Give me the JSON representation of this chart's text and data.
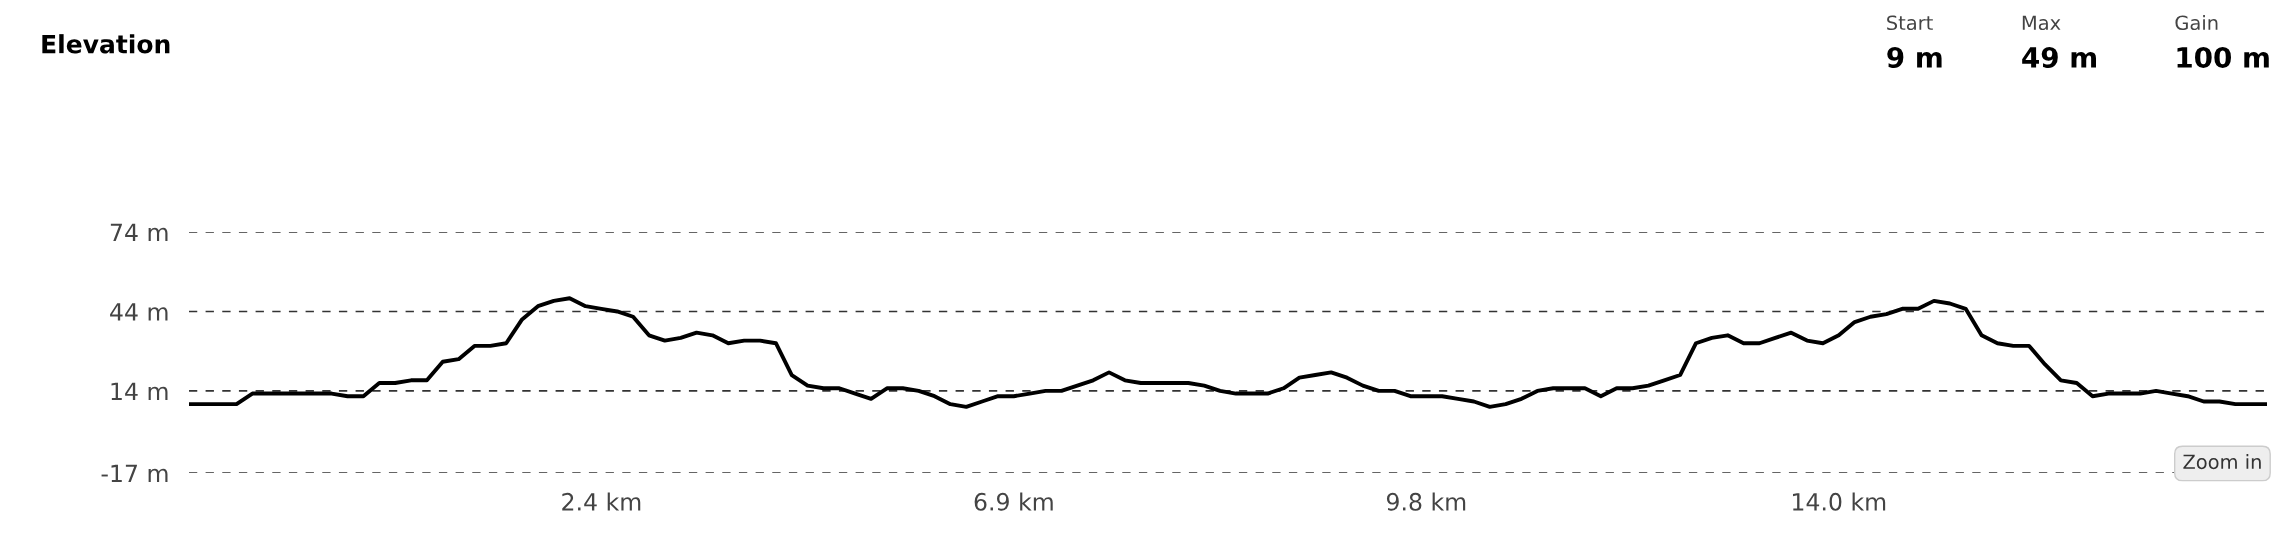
{
  "chart_data": {
    "type": "line",
    "title": "Elevation",
    "categories": [
      null,
      null,
      null,
      null,
      null,
      null,
      null,
      null,
      null,
      null,
      null,
      null,
      null,
      null,
      null,
      null,
      null,
      null,
      null,
      null,
      null,
      null,
      null,
      null,
      null,
      null,
      "2.4 km",
      null,
      null,
      null,
      null,
      null,
      null,
      null,
      null,
      null,
      null,
      null,
      null,
      null,
      null,
      null,
      null,
      null,
      null,
      null,
      null,
      null,
      null,
      null,
      null,
      null,
      "6.9 km",
      null,
      null,
      null,
      null,
      null,
      null,
      null,
      null,
      null,
      null,
      null,
      null,
      null,
      null,
      null,
      null,
      null,
      null,
      null,
      null,
      null,
      null,
      null,
      null,
      null,
      "9.8 km",
      null,
      null,
      null,
      null,
      null,
      null,
      null,
      null,
      null,
      null,
      null,
      null,
      null,
      null,
      null,
      null,
      null,
      null,
      null,
      null,
      null,
      null,
      null,
      null,
      null,
      "14.0 km",
      null,
      null,
      null,
      null,
      null,
      null,
      null,
      null,
      null,
      null,
      null,
      null,
      null,
      null,
      null,
      null,
      null,
      null,
      null,
      null,
      null,
      null,
      null,
      null,
      null,
      null,
      null
    ],
    "series": [
      {
        "color": "#000000",
        "values": [
          9,
          9,
          9,
          9,
          13,
          13,
          13,
          13,
          13,
          13,
          12,
          12,
          17,
          17,
          18,
          18,
          25,
          26,
          31,
          31,
          32,
          41,
          46,
          48,
          49,
          46,
          45,
          44,
          42,
          35,
          33,
          34,
          36,
          35,
          32,
          33,
          33,
          32,
          20,
          16,
          15,
          15,
          13,
          11,
          15,
          15,
          14,
          12,
          9,
          8,
          10,
          12,
          12,
          13,
          14,
          14,
          16,
          18,
          21,
          18,
          17,
          17,
          17,
          17,
          16,
          14,
          13,
          13,
          13,
          15,
          19,
          20,
          21,
          19,
          16,
          14,
          14,
          12,
          12,
          12,
          11,
          10,
          8,
          9,
          11,
          14,
          15,
          15,
          15,
          12,
          15,
          15,
          16,
          18,
          20,
          32,
          34,
          35,
          32,
          32,
          34,
          36,
          33,
          32,
          35,
          40,
          42,
          43,
          45,
          45,
          48,
          47,
          45,
          35,
          32,
          31,
          31,
          24,
          18,
          17,
          12,
          13,
          13,
          13,
          14,
          13,
          12,
          10,
          10,
          9,
          9,
          9
        ]
      }
    ],
    "ylim": [
      -17,
      74
    ],
    "yticks": [
      {
        "value": -17,
        "label": "-17 m"
      },
      {
        "value": 14,
        "label": "14 m"
      },
      {
        "value": 44,
        "label": "44 m"
      },
      {
        "value": 74,
        "label": "74 m"
      }
    ],
    "grid": "y",
    "annotations": [
      "Start",
      "9 m",
      "Max",
      "49 m",
      "Gain",
      "100 m",
      "Zoom in"
    ]
  }
}
